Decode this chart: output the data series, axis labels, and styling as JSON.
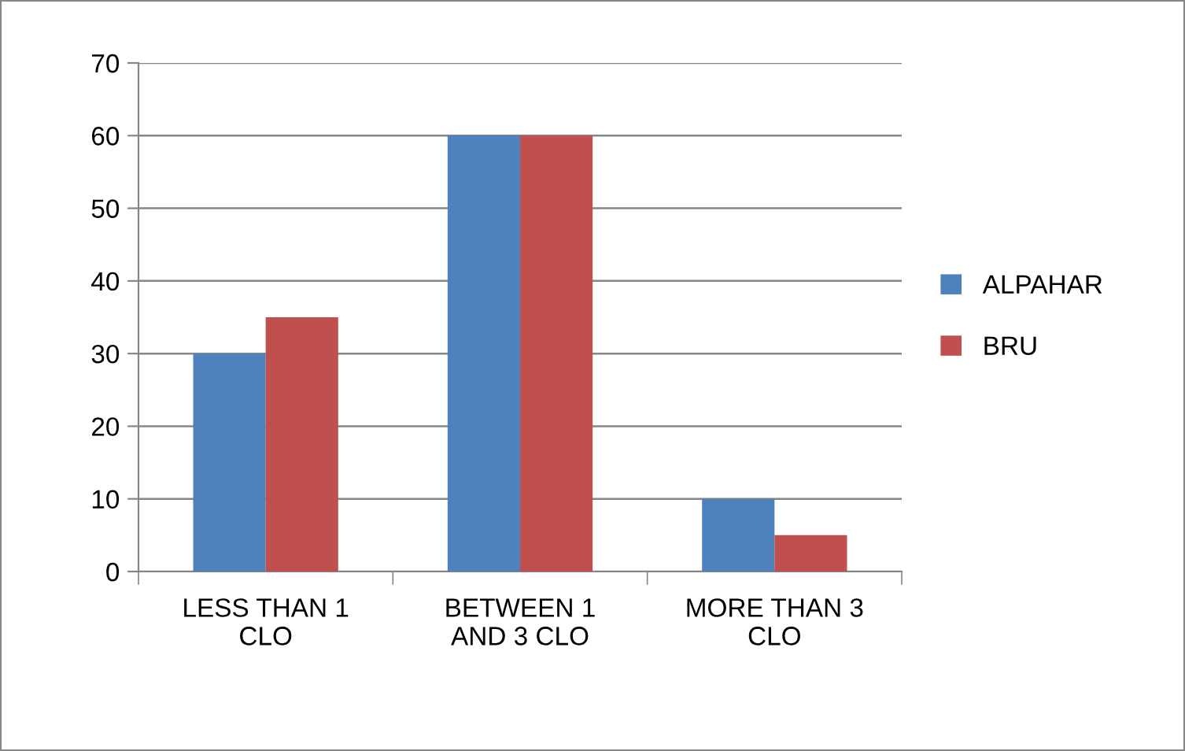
{
  "chart_data": {
    "type": "bar",
    "categories": [
      "LESS THAN 1\nCLO",
      "BETWEEN 1\nAND 3 CLO",
      "MORE THAN 3\nCLO"
    ],
    "series": [
      {
        "name": "ALPAHAR",
        "color": "#4f81bd",
        "values": [
          30,
          60,
          10
        ]
      },
      {
        "name": "BRU",
        "color": "#c0504d",
        "values": [
          35,
          60,
          5
        ]
      }
    ],
    "ylim": [
      0,
      70
    ],
    "yticks": [
      0,
      10,
      20,
      30,
      40,
      50,
      60,
      70
    ],
    "grid": "y",
    "legend": "right"
  }
}
